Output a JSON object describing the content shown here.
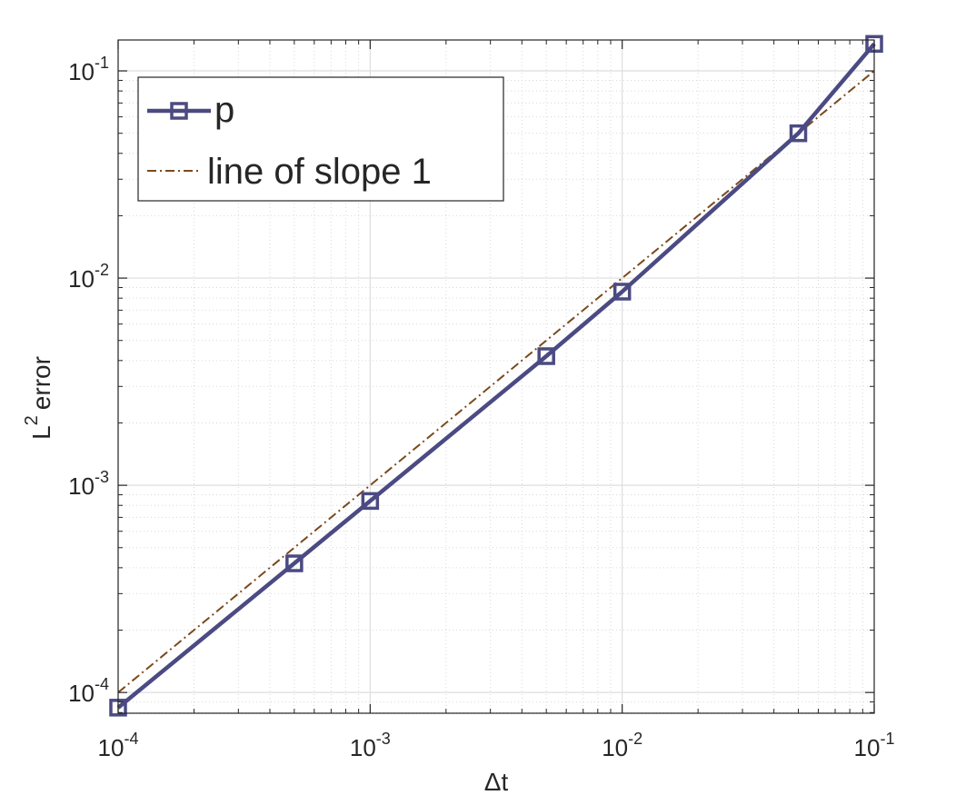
{
  "chart_data": {
    "type": "line",
    "xscale": "log",
    "yscale": "log",
    "xlabel": "Δt",
    "ylabel": "L",
    "ylabel_superscript": "2",
    "ylabel_suffix": "error",
    "xlim": [
      0.0001,
      0.1
    ],
    "ylim": [
      7.94e-05,
      0.141
    ],
    "grid": true,
    "minor_grid": true,
    "legend_position": "top-left",
    "x_ticks": [
      {
        "base": "10",
        "exp": "-4",
        "value": 0.0001
      },
      {
        "base": "10",
        "exp": "-3",
        "value": 0.001
      },
      {
        "base": "10",
        "exp": "-2",
        "value": 0.01
      },
      {
        "base": "10",
        "exp": "-1",
        "value": 0.1
      }
    ],
    "y_ticks": [
      {
        "base": "10",
        "exp": "-4",
        "value": 0.0001
      },
      {
        "base": "10",
        "exp": "-3",
        "value": 0.001
      },
      {
        "base": "10",
        "exp": "-2",
        "value": 0.01
      },
      {
        "base": "10",
        "exp": "-1",
        "value": 0.1
      }
    ],
    "series": [
      {
        "name": "p",
        "color": "#4b4a82",
        "style": "solid",
        "marker": "square",
        "x": [
          0.0001,
          0.0005,
          0.001,
          0.005,
          0.01,
          0.05,
          0.1
        ],
        "y": [
          8.45e-05,
          0.00042,
          0.00084,
          0.0042,
          0.0086,
          0.05,
          0.135
        ]
      },
      {
        "name": "line of slope 1",
        "color": "#7b4a1c",
        "style": "dashdot",
        "marker": "none",
        "x": [
          0.0001,
          0.0005,
          0.001,
          0.005,
          0.01,
          0.05,
          0.1
        ],
        "y": [
          0.0001,
          0.0005,
          0.001,
          0.005,
          0.01,
          0.05,
          0.1
        ]
      }
    ]
  }
}
